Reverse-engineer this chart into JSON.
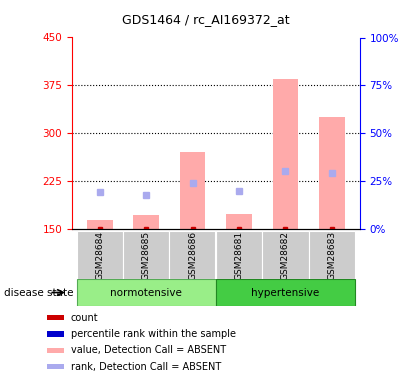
{
  "title": "GDS1464 / rc_AI169372_at",
  "samples": [
    "GSM28684",
    "GSM28685",
    "GSM28686",
    "GSM28681",
    "GSM28682",
    "GSM28683"
  ],
  "bar_bottom": 150,
  "value_bars": [
    163,
    172,
    270,
    173,
    385,
    325
  ],
  "rank_markers": [
    207,
    203,
    222,
    210,
    240,
    237
  ],
  "bar_color": "#ffaaaa",
  "rank_color": "#aaaaee",
  "count_color": "#cc0000",
  "ylim_left": [
    150,
    450
  ],
  "ylim_right": [
    0,
    100
  ],
  "yticks_left": [
    150,
    225,
    300,
    375,
    450
  ],
  "yticks_right": [
    0,
    25,
    50,
    75,
    100
  ],
  "ytick_labels_right": [
    "0%",
    "25%",
    "50%",
    "75%",
    "100%"
  ],
  "hlines": [
    225,
    300,
    375
  ],
  "disease_state_label": "disease state",
  "normotensive_color": "#99ee88",
  "hypertensive_color": "#44cc44",
  "legend_items": [
    {
      "color": "#cc0000",
      "label": "count"
    },
    {
      "color": "#0000cc",
      "label": "percentile rank within the sample"
    },
    {
      "color": "#ffaaaa",
      "label": "value, Detection Call = ABSENT"
    },
    {
      "color": "#aaaaee",
      "label": "rank, Detection Call = ABSENT"
    }
  ],
  "bar_width": 0.55,
  "figsize": [
    4.11,
    3.75
  ],
  "dpi": 100
}
